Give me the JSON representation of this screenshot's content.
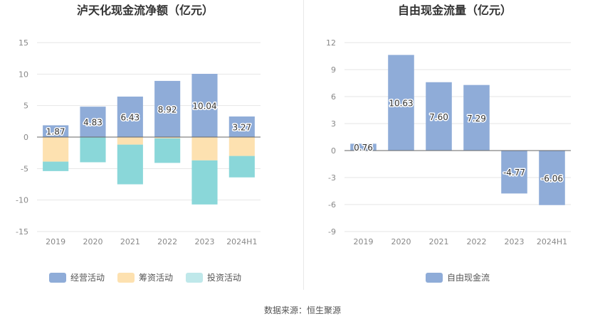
{
  "chart_data": [
    {
      "type": "bar",
      "stacked": true,
      "title": "泸天化现金流净额（亿元）",
      "categories": [
        "2019",
        "2020",
        "2021",
        "2022",
        "2023",
        "2024H1"
      ],
      "series": [
        {
          "name": "经营活动",
          "color": "#8facd8",
          "values": [
            1.87,
            4.83,
            6.43,
            8.92,
            10.04,
            3.27
          ],
          "labeled": true
        },
        {
          "name": "筹资活动",
          "color": "#fde1b0",
          "values": [
            -3.9,
            0.0,
            -1.2,
            -0.2,
            -3.7,
            -3.0
          ],
          "labeled": false
        },
        {
          "name": "投资活动",
          "color": "#8ad7d9",
          "values": [
            -1.5,
            -4.0,
            -6.3,
            -3.9,
            -7.0,
            -3.4
          ],
          "labeled": false
        }
      ],
      "legend_colors": [
        "#8facd8",
        "#fde1b0",
        "#bfe8ea"
      ],
      "ylim": [
        -15,
        15
      ],
      "yticks": [
        15,
        10,
        5,
        0,
        -5,
        -10,
        -15
      ],
      "legend": "bottom"
    },
    {
      "type": "bar",
      "title": "自由现金流量（亿元）",
      "categories": [
        "2019",
        "2020",
        "2021",
        "2022",
        "2023",
        "2024H1"
      ],
      "series": [
        {
          "name": "自由现金流",
          "color": "#8facd8",
          "values": [
            0.76,
            10.63,
            7.6,
            7.29,
            -4.77,
            -6.06
          ],
          "labeled": true
        }
      ],
      "legend_colors": [
        "#8facd8"
      ],
      "ylim": [
        -9,
        12
      ],
      "yticks": [
        12,
        9,
        6,
        3,
        0,
        -3,
        -6,
        -9
      ],
      "legend": "bottom"
    }
  ],
  "source_text": "数据来源：恒生聚源"
}
